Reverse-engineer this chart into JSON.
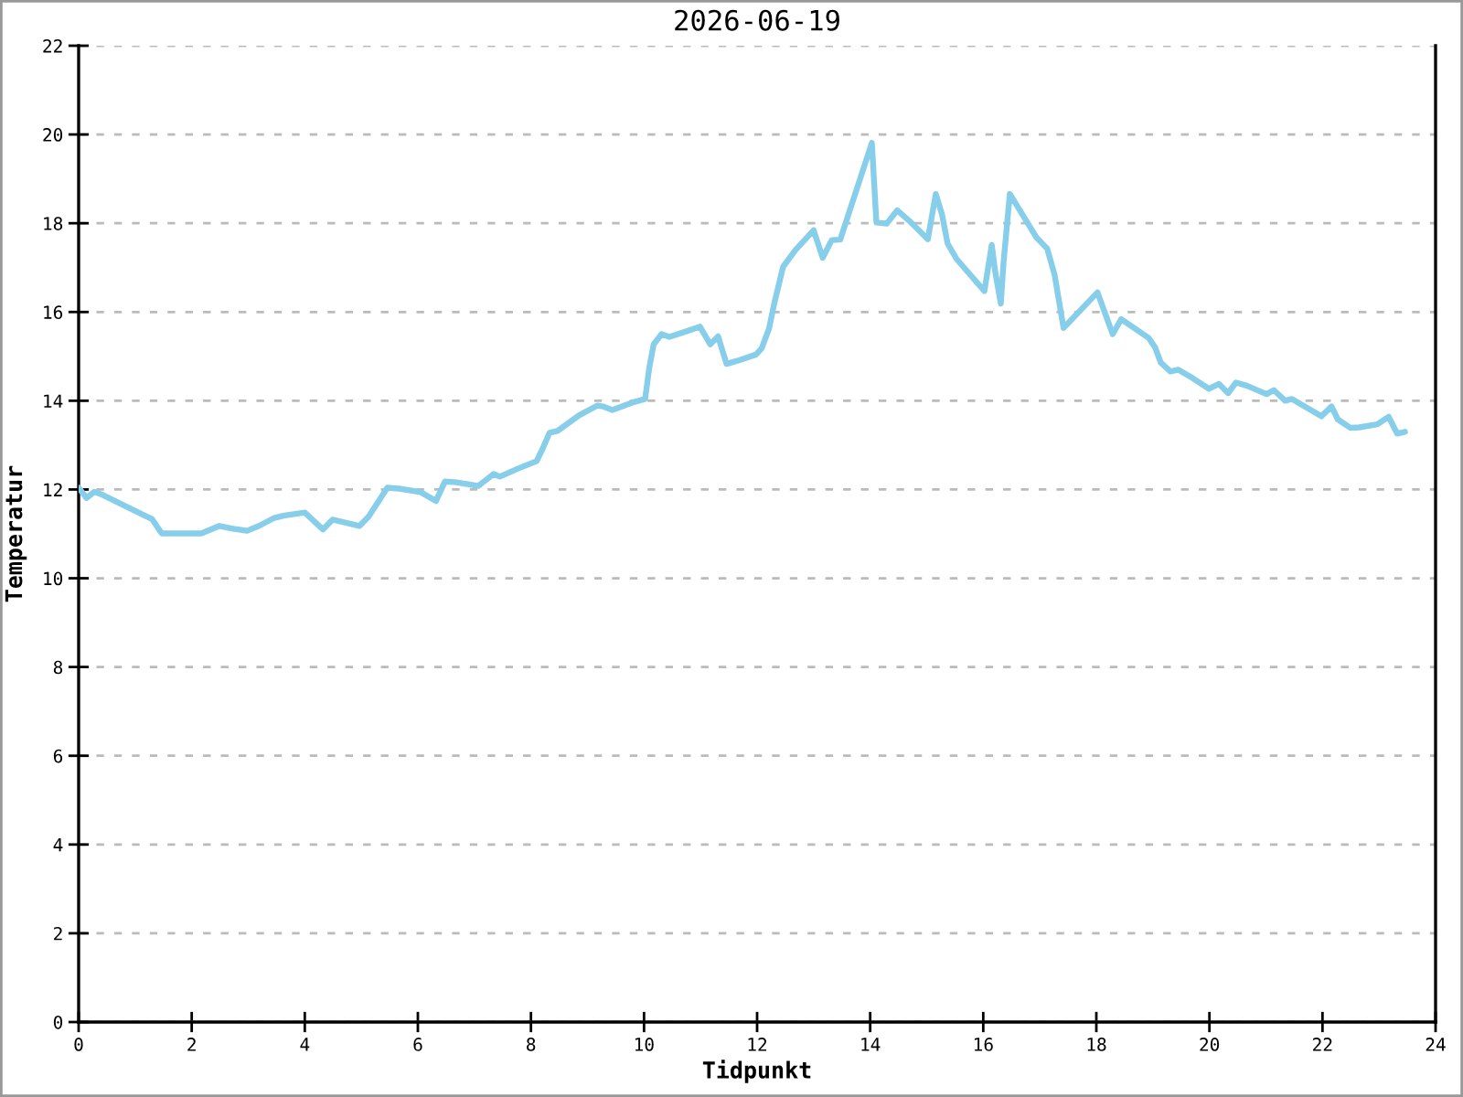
{
  "chart_data": {
    "type": "line",
    "title": "2026-06-19",
    "xlabel": "Tidpunkt",
    "ylabel": "Temperatur",
    "x": [
      0,
      0.14,
      0.28,
      0.44,
      1.14,
      1.3,
      1.47,
      2.17,
      2.49,
      2.71,
      2.98,
      3.19,
      3.46,
      3.62,
      4.0,
      4.32,
      4.49,
      4.97,
      5.13,
      5.46,
      5.67,
      6.05,
      6.32,
      6.48,
      6.69,
      7.07,
      7.34,
      7.45,
      7.77,
      8.1,
      8.2,
      8.33,
      8.47,
      8.85,
      9.17,
      9.28,
      9.44,
      9.82,
      10.02,
      10.09,
      10.17,
      10.31,
      10.45,
      10.74,
      10.99,
      11.17,
      11.31,
      11.46,
      11.65,
      11.98,
      12.08,
      12.21,
      12.3,
      12.46,
      12.68,
      13.0,
      13.16,
      13.32,
      13.47,
      14.03,
      14.11,
      14.29,
      14.48,
      14.72,
      15.02,
      15.16,
      15.27,
      15.37,
      15.53,
      16.02,
      16.15,
      16.21,
      16.31,
      16.36,
      16.47,
      16.94,
      17.13,
      17.26,
      17.42,
      18.02,
      18.29,
      18.44,
      18.93,
      19.04,
      19.14,
      19.31,
      19.45,
      19.69,
      19.99,
      20.17,
      20.33,
      20.47,
      20.66,
      21.01,
      21.14,
      21.34,
      21.46,
      21.98,
      22.16,
      22.27,
      22.49,
      22.65,
      22.97,
      23.17,
      23.32,
      23.46
    ],
    "series": [
      {
        "color": "#87ceeb",
        "values": [
          12.04,
          11.81,
          11.95,
          11.87,
          11.43,
          11.33,
          11.01,
          11.01,
          11.18,
          11.12,
          11.07,
          11.18,
          11.36,
          11.41,
          11.48,
          11.1,
          11.32,
          11.18,
          11.39,
          12.04,
          12.02,
          11.94,
          11.74,
          12.18,
          12.16,
          12.08,
          12.35,
          12.29,
          12.47,
          12.64,
          12.9,
          13.28,
          13.32,
          13.67,
          13.89,
          13.87,
          13.79,
          13.97,
          14.04,
          14.72,
          15.27,
          15.5,
          15.44,
          15.56,
          15.67,
          15.27,
          15.45,
          14.83,
          14.9,
          15.04,
          15.18,
          15.62,
          16.17,
          17.02,
          17.4,
          17.84,
          17.22,
          17.62,
          17.63,
          19.81,
          18.02,
          17.99,
          18.29,
          18.02,
          17.64,
          18.66,
          18.2,
          17.54,
          17.19,
          16.47,
          17.51,
          16.92,
          16.19,
          17.13,
          18.66,
          17.68,
          17.43,
          16.85,
          15.64,
          16.44,
          15.5,
          15.84,
          15.41,
          15.2,
          14.86,
          14.66,
          14.7,
          14.52,
          14.27,
          14.38,
          14.17,
          14.41,
          14.34,
          14.15,
          14.24,
          14.0,
          14.04,
          13.65,
          13.87,
          13.58,
          13.39,
          13.4,
          13.47,
          13.64,
          13.26,
          13.3
        ]
      }
    ],
    "xlim": [
      0,
      24
    ],
    "xticks": [
      0,
      2,
      4,
      6,
      8,
      10,
      12,
      14,
      16,
      18,
      20,
      22,
      24
    ],
    "ylim": [
      0,
      22
    ],
    "yticks": [
      0,
      2,
      4,
      6,
      8,
      10,
      12,
      14,
      16,
      18,
      20,
      22
    ],
    "grid": "y",
    "line_style": "solid"
  }
}
